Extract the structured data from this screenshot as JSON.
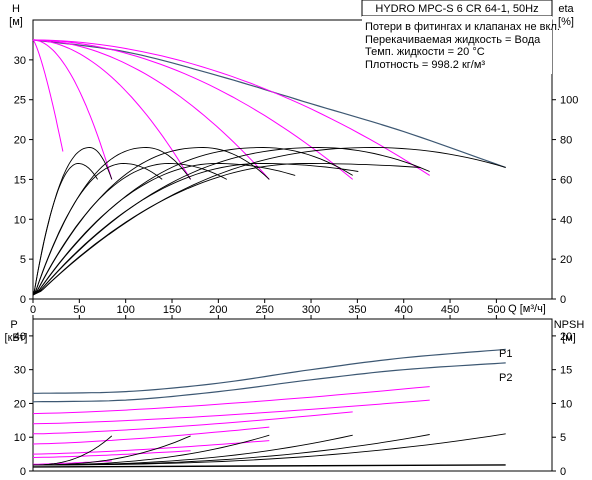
{
  "chart_data": [
    {
      "type": "line",
      "title": "HYDRO MPC-S 6 CR 64-1, 50Hz",
      "notes": [
        "Потери в фитингах и клапанах не вкл.",
        "Перекачиваемая жидкость = Вода",
        "Темп. жидкости = 20 °C",
        "Плотность = 998.2 кг/м³"
      ],
      "xlabel": "Q [м³/ч]",
      "xlim": [
        0,
        560
      ],
      "x_ticks": [
        "0",
        "50",
        "100",
        "150",
        "200",
        "250",
        "300",
        "350",
        "400",
        "450",
        "500"
      ],
      "left_axis": {
        "label_line1": "H",
        "label_line2": "[м]",
        "ylim": [
          0,
          35
        ],
        "ticks": [
          "0",
          "5",
          "10",
          "15",
          "20",
          "25",
          "30"
        ]
      },
      "right_axis": {
        "label_line1": "eta",
        "label_line2": "[%]",
        "ylim": [
          0,
          140
        ],
        "ticks": [
          "0",
          "20",
          "40",
          "60",
          "80",
          "100"
        ]
      },
      "pumps_max_q": [
        85,
        170,
        255,
        345,
        428,
        510
      ],
      "shutoff_head": 32.5,
      "end_head": [
        15.0,
        15.0,
        15.0,
        15.0,
        15.5,
        16.5
      ],
      "series": [
        {
          "kind": "max-speed-head",
          "color": "#3d5873",
          "points": [
            [
              0,
              32.5
            ],
            [
              100,
              31.0
            ],
            [
              200,
              28.0
            ],
            [
              300,
              24.5
            ],
            [
              400,
              21.0
            ],
            [
              510,
              16.5
            ]
          ]
        },
        {
          "kind": "reduced-speed-head",
          "color": "#ff00ff",
          "q_shutoff": [
            85,
            170,
            255,
            345,
            428
          ]
        },
        {
          "kind": "efficiency",
          "color": "#000000",
          "peak_eta": 76,
          "end_eta": [
            60,
            60,
            60,
            62,
            64,
            66
          ]
        }
      ]
    },
    {
      "type": "line",
      "xlim": [
        0,
        560
      ],
      "left_axis": {
        "label_line1": "P",
        "label_line2": "[кВт]",
        "ylim": [
          0,
          45
        ],
        "ticks": [
          "0",
          "10",
          "20",
          "30",
          "40"
        ]
      },
      "right_axis": {
        "label_line1": "NPSH",
        "label_line2": "[м]",
        "ylim": [
          0,
          22.5
        ],
        "ticks": [
          "0",
          "5",
          "10",
          "15",
          "20"
        ]
      },
      "series": [
        {
          "name": "P1",
          "color": "#3d5873",
          "points": [
            [
              0,
              23.0
            ],
            [
              100,
              23.5
            ],
            [
              200,
              26.0
            ],
            [
              300,
              30.0
            ],
            [
              400,
              33.5
            ],
            [
              510,
              36.0
            ]
          ]
        },
        {
          "name": "P2",
          "color": "#3d5873",
          "points": [
            [
              0,
              20.5
            ],
            [
              100,
              21.0
            ],
            [
              200,
              23.5
            ],
            [
              300,
              27.0
            ],
            [
              400,
              30.0
            ],
            [
              510,
              32.0
            ]
          ]
        },
        {
          "kind": "reduced-speed-power",
          "color": "#ff00ff",
          "levels": [
            [
              17,
              25
            ],
            [
              14,
              21
            ],
            [
              11,
              17.5
            ],
            [
              8,
              13
            ],
            [
              5,
              9
            ],
            [
              4,
              6
            ],
            [
              2,
              3
            ]
          ]
        },
        {
          "kind": "npsh",
          "color": "#000000",
          "points": [
            [
              85,
              5.2
            ],
            [
              170,
              5.2
            ],
            [
              255,
              5.3
            ],
            [
              345,
              5.3
            ],
            [
              428,
              5.4
            ],
            [
              510,
              5.5
            ]
          ]
        }
      ]
    }
  ]
}
